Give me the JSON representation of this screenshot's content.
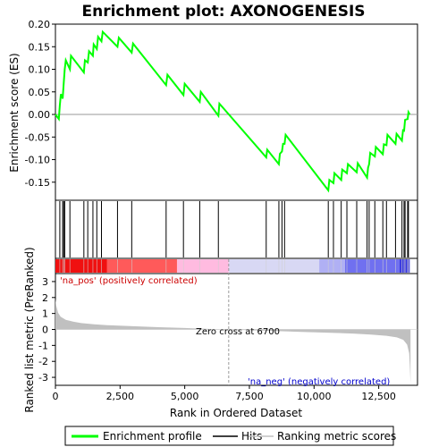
{
  "chart_data": {
    "type": "line",
    "title": "Enrichment plot: AXONOGENESIS",
    "colors": {
      "enrichment": "#00ff00",
      "hits": "#000000",
      "metric": "#c0c0c0",
      "pos_label": "#cc0000",
      "neg_label": "#0000cc",
      "zero_line": "#999999"
    },
    "es_panel": {
      "ylabel": "Enrichment score (ES)",
      "ylim": [
        -0.19,
        0.2
      ],
      "yticks": [
        0.2,
        0.15,
        0.1,
        0.05,
        0.0,
        -0.05,
        -0.1,
        -0.15
      ],
      "ytick_labels": [
        "0.20",
        "0.15",
        "0.10",
        "0.05",
        "0.00",
        "-0.05",
        "-0.10",
        "-0.15"
      ],
      "grid": false,
      "points": [
        [
          0,
          0.0
        ],
        [
          130,
          -0.01
        ],
        [
          170,
          0.02
        ],
        [
          210,
          0.045
        ],
        [
          280,
          0.035
        ],
        [
          320,
          0.07
        ],
        [
          360,
          0.1
        ],
        [
          400,
          0.12
        ],
        [
          560,
          0.1
        ],
        [
          600,
          0.13
        ],
        [
          1100,
          0.093
        ],
        [
          1140,
          0.12
        ],
        [
          1250,
          0.115
        ],
        [
          1300,
          0.14
        ],
        [
          1450,
          0.13
        ],
        [
          1480,
          0.155
        ],
        [
          1600,
          0.145
        ],
        [
          1650,
          0.172
        ],
        [
          1780,
          0.162
        ],
        [
          1830,
          0.183
        ],
        [
          2400,
          0.15
        ],
        [
          2450,
          0.17
        ],
        [
          2950,
          0.137
        ],
        [
          3000,
          0.157
        ],
        [
          4280,
          0.065
        ],
        [
          4330,
          0.088
        ],
        [
          4950,
          0.043
        ],
        [
          5000,
          0.068
        ],
        [
          5580,
          0.028
        ],
        [
          5620,
          0.05
        ],
        [
          6300,
          -0.003
        ],
        [
          6340,
          0.024
        ],
        [
          8150,
          -0.095
        ],
        [
          8190,
          -0.078
        ],
        [
          8640,
          -0.11
        ],
        [
          8680,
          -0.087
        ],
        [
          8760,
          -0.082
        ],
        [
          8800,
          -0.065
        ],
        [
          8860,
          -0.065
        ],
        [
          8900,
          -0.045
        ],
        [
          10550,
          -0.168
        ],
        [
          10590,
          -0.145
        ],
        [
          10750,
          -0.152
        ],
        [
          10790,
          -0.13
        ],
        [
          11050,
          -0.145
        ],
        [
          11090,
          -0.122
        ],
        [
          11270,
          -0.13
        ],
        [
          11310,
          -0.11
        ],
        [
          11650,
          -0.128
        ],
        [
          11690,
          -0.108
        ],
        [
          12050,
          -0.14
        ],
        [
          12090,
          -0.118
        ],
        [
          12130,
          -0.11
        ],
        [
          12170,
          -0.085
        ],
        [
          12350,
          -0.093
        ],
        [
          12390,
          -0.072
        ],
        [
          12660,
          -0.088
        ],
        [
          12700,
          -0.066
        ],
        [
          12800,
          -0.068
        ],
        [
          12840,
          -0.045
        ],
        [
          13150,
          -0.065
        ],
        [
          13190,
          -0.043
        ],
        [
          13400,
          -0.058
        ],
        [
          13440,
          -0.035
        ],
        [
          13480,
          -0.036
        ],
        [
          13520,
          -0.012
        ],
        [
          13620,
          -0.01
        ],
        [
          13650,
          0.005
        ],
        [
          13700,
          0.0
        ]
      ]
    },
    "hits": [
      170,
      280,
      320,
      360,
      560,
      1100,
      1250,
      1450,
      1600,
      1780,
      2400,
      2950,
      4280,
      4950,
      5580,
      6300,
      8150,
      8640,
      8760,
      8860,
      10550,
      10750,
      11050,
      11270,
      11650,
      12050,
      12130,
      12350,
      12660,
      12800,
      13150,
      13400,
      13480,
      13520,
      13620,
      13650
    ],
    "metric_panel": {
      "ylabel": "Ranked list metric (PreRanked)",
      "xlabel": "Rank in Ordered Dataset",
      "xlim": [
        0,
        14000
      ],
      "ylim": [
        -3.5,
        3.5
      ],
      "yticks": [
        3,
        2,
        1,
        0,
        -1,
        -2,
        -3
      ],
      "xticks": [
        0,
        2500,
        5000,
        7500,
        10000,
        12500
      ],
      "xtick_labels": [
        "0",
        "2,500",
        "5,000",
        "7,500",
        "10,000",
        "12,500"
      ],
      "zero_cross_rank": 6700,
      "profile": [
        [
          0,
          1.9
        ],
        [
          30,
          1.5
        ],
        [
          100,
          1.05
        ],
        [
          200,
          0.8
        ],
        [
          400,
          0.6
        ],
        [
          700,
          0.48
        ],
        [
          1000,
          0.4
        ],
        [
          1500,
          0.32
        ],
        [
          2000,
          0.27
        ],
        [
          3000,
          0.2
        ],
        [
          4000,
          0.14
        ],
        [
          5000,
          0.09
        ],
        [
          6000,
          0.03
        ],
        [
          6700,
          0.0
        ],
        [
          7500,
          -0.05
        ],
        [
          8500,
          -0.1
        ],
        [
          9500,
          -0.15
        ],
        [
          10500,
          -0.2
        ],
        [
          11500,
          -0.26
        ],
        [
          12200,
          -0.32
        ],
        [
          12800,
          -0.4
        ],
        [
          13200,
          -0.5
        ],
        [
          13450,
          -0.65
        ],
        [
          13600,
          -0.95
        ],
        [
          13680,
          -1.5
        ],
        [
          13710,
          -2.5
        ],
        [
          13730,
          -3.4
        ]
      ]
    },
    "bar_stops": [
      [
        0,
        "#f01010"
      ],
      [
        2000,
        "#ff5a5a"
      ],
      [
        4700,
        "#ff9a9a"
      ],
      [
        4710,
        "#ffbbe0"
      ],
      [
        6700,
        "#f0c8f0"
      ],
      [
        6710,
        "#d8d8f4"
      ],
      [
        10200,
        "#b0b0f4"
      ],
      [
        11200,
        "#7070f0"
      ],
      [
        13300,
        "#3a3ae0"
      ]
    ],
    "annotations": {
      "pos": "'na_pos' (positively correlated)",
      "neg": "'na_neg' (negatively correlated)",
      "zero": "Zero cross at 6700"
    },
    "legend": {
      "items": [
        {
          "label": "Enrichment profile",
          "color": "#00ff00",
          "kind": "line"
        },
        {
          "label": "Hits",
          "color": "#000000",
          "kind": "line"
        },
        {
          "label": "Ranking metric scores",
          "color": "#c0c0c0",
          "kind": "line"
        }
      ],
      "placement": "bottom"
    }
  }
}
